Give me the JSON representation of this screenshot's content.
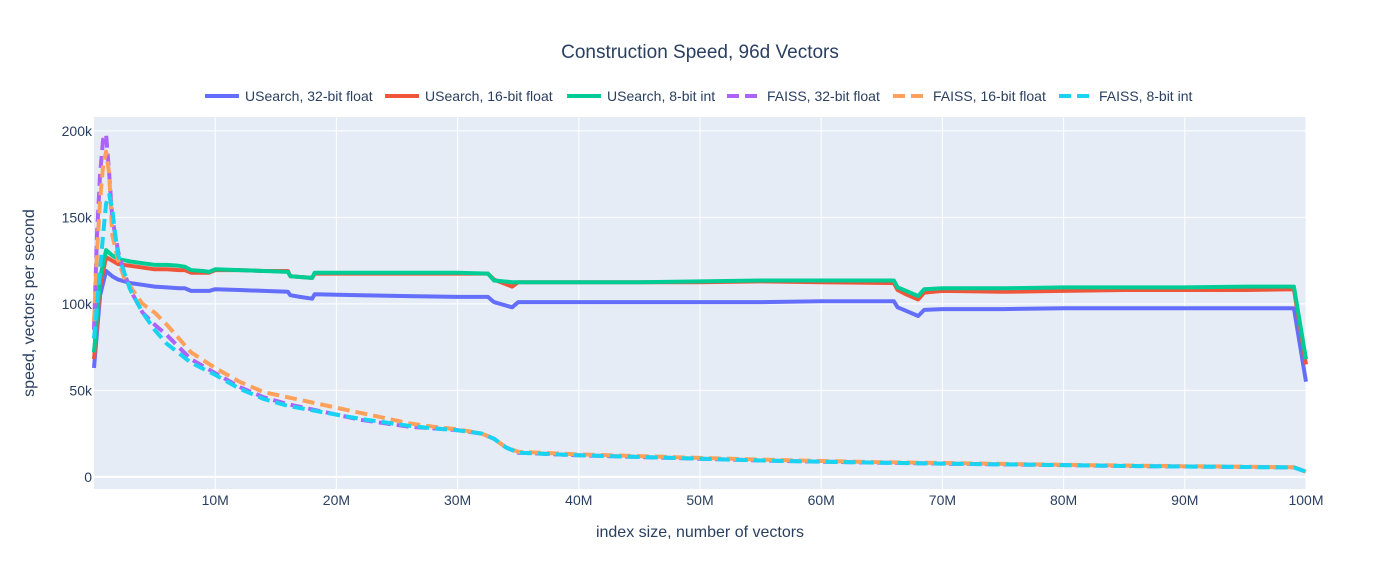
{
  "chart_data": {
    "type": "line",
    "title": "Construction Speed, 96d Vectors",
    "xlabel": "index size, number of vectors",
    "ylabel": "speed, vectors per second",
    "xlim": [
      0,
      100000000
    ],
    "ylim": [
      -7000,
      208000
    ],
    "x_ticks": [
      10000000,
      20000000,
      30000000,
      40000000,
      50000000,
      60000000,
      70000000,
      80000000,
      90000000,
      100000000
    ],
    "x_tick_labels": [
      "10M",
      "20M",
      "30M",
      "40M",
      "50M",
      "60M",
      "70M",
      "80M",
      "90M",
      "100M"
    ],
    "y_ticks": [
      0,
      50000,
      100000,
      150000,
      200000
    ],
    "y_tick_labels": [
      "0",
      "50k",
      "100k",
      "150k",
      "200k"
    ],
    "legend_position": "top-center",
    "colors": {
      "plot_bg": "#e5ecf6",
      "grid": "#ffffff",
      "text": "#2a3f5f"
    },
    "series": [
      {
        "name": "USearch, 32-bit float",
        "color": "#636efa",
        "dash": "solid",
        "x": [
          0,
          500000,
          1000000,
          1500000,
          2000000,
          3000000,
          4000000,
          5000000,
          6000000,
          7000000,
          7500000,
          8000000,
          9000000,
          9500000,
          10000000,
          12000000,
          14000000,
          16000000,
          16200000,
          17000000,
          18000000,
          18200000,
          22000000,
          26000000,
          30000000,
          32500000,
          33000000,
          34500000,
          35000000,
          40000000,
          45000000,
          50000000,
          55000000,
          60000000,
          66000000,
          66300000,
          67000000,
          68000000,
          68500000,
          70000000,
          75000000,
          80000000,
          85000000,
          90000000,
          95000000,
          99000000,
          100000000
        ],
        "y": [
          63000,
          105000,
          119000,
          116000,
          114000,
          112000,
          111000,
          110000,
          109500,
          109000,
          109000,
          107500,
          107500,
          107500,
          108500,
          108000,
          107500,
          107000,
          105000,
          104000,
          103000,
          105500,
          105000,
          104500,
          104000,
          104000,
          101000,
          98000,
          101000,
          101000,
          101000,
          101000,
          101000,
          101500,
          101500,
          98000,
          96000,
          93000,
          96500,
          97000,
          97000,
          97500,
          97500,
          97500,
          97500,
          97500,
          55000
        ]
      },
      {
        "name": "USearch, 16-bit float",
        "color": "#ef553b",
        "dash": "solid",
        "x": [
          0,
          500000,
          1000000,
          1500000,
          2000000,
          3000000,
          4000000,
          5000000,
          6000000,
          7000000,
          7500000,
          8000000,
          9000000,
          9500000,
          10000000,
          12000000,
          14000000,
          16000000,
          16200000,
          17000000,
          18000000,
          18200000,
          22000000,
          26000000,
          30000000,
          32500000,
          33000000,
          34500000,
          35000000,
          40000000,
          45000000,
          50000000,
          55000000,
          60000000,
          66000000,
          66300000,
          67000000,
          68000000,
          68500000,
          70000000,
          75000000,
          80000000,
          85000000,
          90000000,
          95000000,
          99000000,
          100000000
        ],
        "y": [
          68000,
          110000,
          127000,
          125000,
          123000,
          122000,
          121000,
          120000,
          120000,
          119500,
          119500,
          118000,
          118000,
          118000,
          119500,
          119500,
          119000,
          119000,
          116000,
          115500,
          115000,
          117500,
          117500,
          117500,
          117500,
          117500,
          114000,
          110000,
          112500,
          112500,
          112500,
          112500,
          113000,
          112500,
          112000,
          108000,
          105500,
          102500,
          106500,
          107500,
          107000,
          107500,
          108000,
          108000,
          108000,
          108500,
          65000
        ]
      },
      {
        "name": "USearch, 8-bit int",
        "color": "#00cc96",
        "dash": "solid",
        "x": [
          0,
          500000,
          1000000,
          1500000,
          2000000,
          3000000,
          4000000,
          5000000,
          6000000,
          7000000,
          7500000,
          8000000,
          9000000,
          9500000,
          10000000,
          12000000,
          14000000,
          16000000,
          16200000,
          17000000,
          18000000,
          18200000,
          22000000,
          26000000,
          30000000,
          32500000,
          33000000,
          34500000,
          35000000,
          40000000,
          45000000,
          50000000,
          55000000,
          60000000,
          66000000,
          66300000,
          67000000,
          68000000,
          68500000,
          70000000,
          75000000,
          80000000,
          85000000,
          90000000,
          95000000,
          99000000,
          100000000
        ],
        "y": [
          72000,
          115000,
          131000,
          128000,
          126000,
          124500,
          123500,
          122500,
          122500,
          122000,
          121500,
          119500,
          119000,
          118500,
          120000,
          119500,
          119000,
          118500,
          116000,
          115500,
          115000,
          118000,
          118000,
          118000,
          118000,
          117500,
          113500,
          112500,
          112500,
          112500,
          112500,
          113000,
          113500,
          113500,
          113500,
          109500,
          107500,
          104500,
          108500,
          109000,
          109000,
          109500,
          109500,
          109500,
          110000,
          110000,
          68000
        ]
      },
      {
        "name": "FAISS, 32-bit float",
        "color": "#ab63fa",
        "dash": "dash",
        "x": [
          0,
          250000,
          500000,
          750000,
          1000000,
          1250000,
          1500000,
          2000000,
          2500000,
          3000000,
          4000000,
          5000000,
          6000000,
          8000000,
          10000000,
          12000000,
          14000000,
          16000000,
          18000000,
          20000000,
          22000000,
          24000000,
          26000000,
          28000000,
          30000000,
          32000000,
          33000000,
          34000000,
          35000000,
          40000000,
          45000000,
          50000000,
          55000000,
          60000000,
          65000000,
          70000000,
          75000000,
          80000000,
          85000000,
          90000000,
          95000000,
          99000000,
          100000000
        ],
        "y": [
          85000,
          140000,
          175000,
          195000,
          198000,
          175000,
          150000,
          130000,
          118000,
          108000,
          95000,
          88000,
          82000,
          68000,
          60000,
          52000,
          46000,
          42000,
          39000,
          36000,
          33000,
          31000,
          29000,
          28000,
          27000,
          25000,
          22000,
          17000,
          14000,
          12500,
          11500,
          10500,
          9500,
          8800,
          8200,
          7700,
          7200,
          6800,
          6300,
          6000,
          5700,
          5500,
          3000
        ]
      },
      {
        "name": "FAISS, 16-bit float",
        "color": "#ffa15a",
        "dash": "dash",
        "x": [
          0,
          250000,
          500000,
          750000,
          1000000,
          1250000,
          1500000,
          2000000,
          2500000,
          3000000,
          4000000,
          5000000,
          6000000,
          8000000,
          10000000,
          12000000,
          14000000,
          16000000,
          18000000,
          20000000,
          22000000,
          24000000,
          26000000,
          28000000,
          30000000,
          32000000,
          33000000,
          34000000,
          35000000,
          40000000,
          45000000,
          50000000,
          55000000,
          60000000,
          65000000,
          70000000,
          75000000,
          80000000,
          85000000,
          90000000,
          95000000,
          99000000,
          100000000
        ],
        "y": [
          90000,
          130000,
          160000,
          180000,
          188000,
          175000,
          140000,
          125000,
          115000,
          110000,
          100000,
          95000,
          88000,
          72000,
          63000,
          55000,
          49000,
          46000,
          43000,
          40000,
          37000,
          34000,
          31000,
          29000,
          27500,
          25000,
          22000,
          17000,
          14500,
          13000,
          12000,
          11000,
          10000,
          9200,
          8500,
          8000,
          7500,
          7000,
          6600,
          6200,
          5900,
          5600,
          3000
        ]
      },
      {
        "name": "FAISS, 8-bit int",
        "color": "#19d3f3",
        "dash": "dash",
        "x": [
          0,
          250000,
          500000,
          750000,
          1000000,
          1250000,
          1500000,
          1750000,
          2000000,
          2500000,
          3000000,
          4000000,
          5000000,
          6000000,
          8000000,
          10000000,
          12000000,
          14000000,
          16000000,
          18000000,
          20000000,
          22000000,
          24000000,
          26000000,
          28000000,
          30000000,
          32000000,
          33000000,
          34000000,
          35000000,
          40000000,
          45000000,
          50000000,
          55000000,
          60000000,
          65000000,
          70000000,
          75000000,
          80000000,
          85000000,
          90000000,
          95000000,
          99000000,
          100000000
        ],
        "y": [
          80000,
          100000,
          120000,
          140000,
          158000,
          163000,
          155000,
          140000,
          128000,
          118000,
          108000,
          95000,
          85000,
          77000,
          66000,
          59000,
          51000,
          45000,
          41000,
          38500,
          36000,
          33500,
          31500,
          29500,
          28000,
          27000,
          25000,
          22000,
          17000,
          14000,
          12500,
          11500,
          10500,
          9500,
          8800,
          8200,
          7700,
          7200,
          6800,
          6300,
          6000,
          5700,
          5500,
          3000
        ]
      }
    ]
  }
}
